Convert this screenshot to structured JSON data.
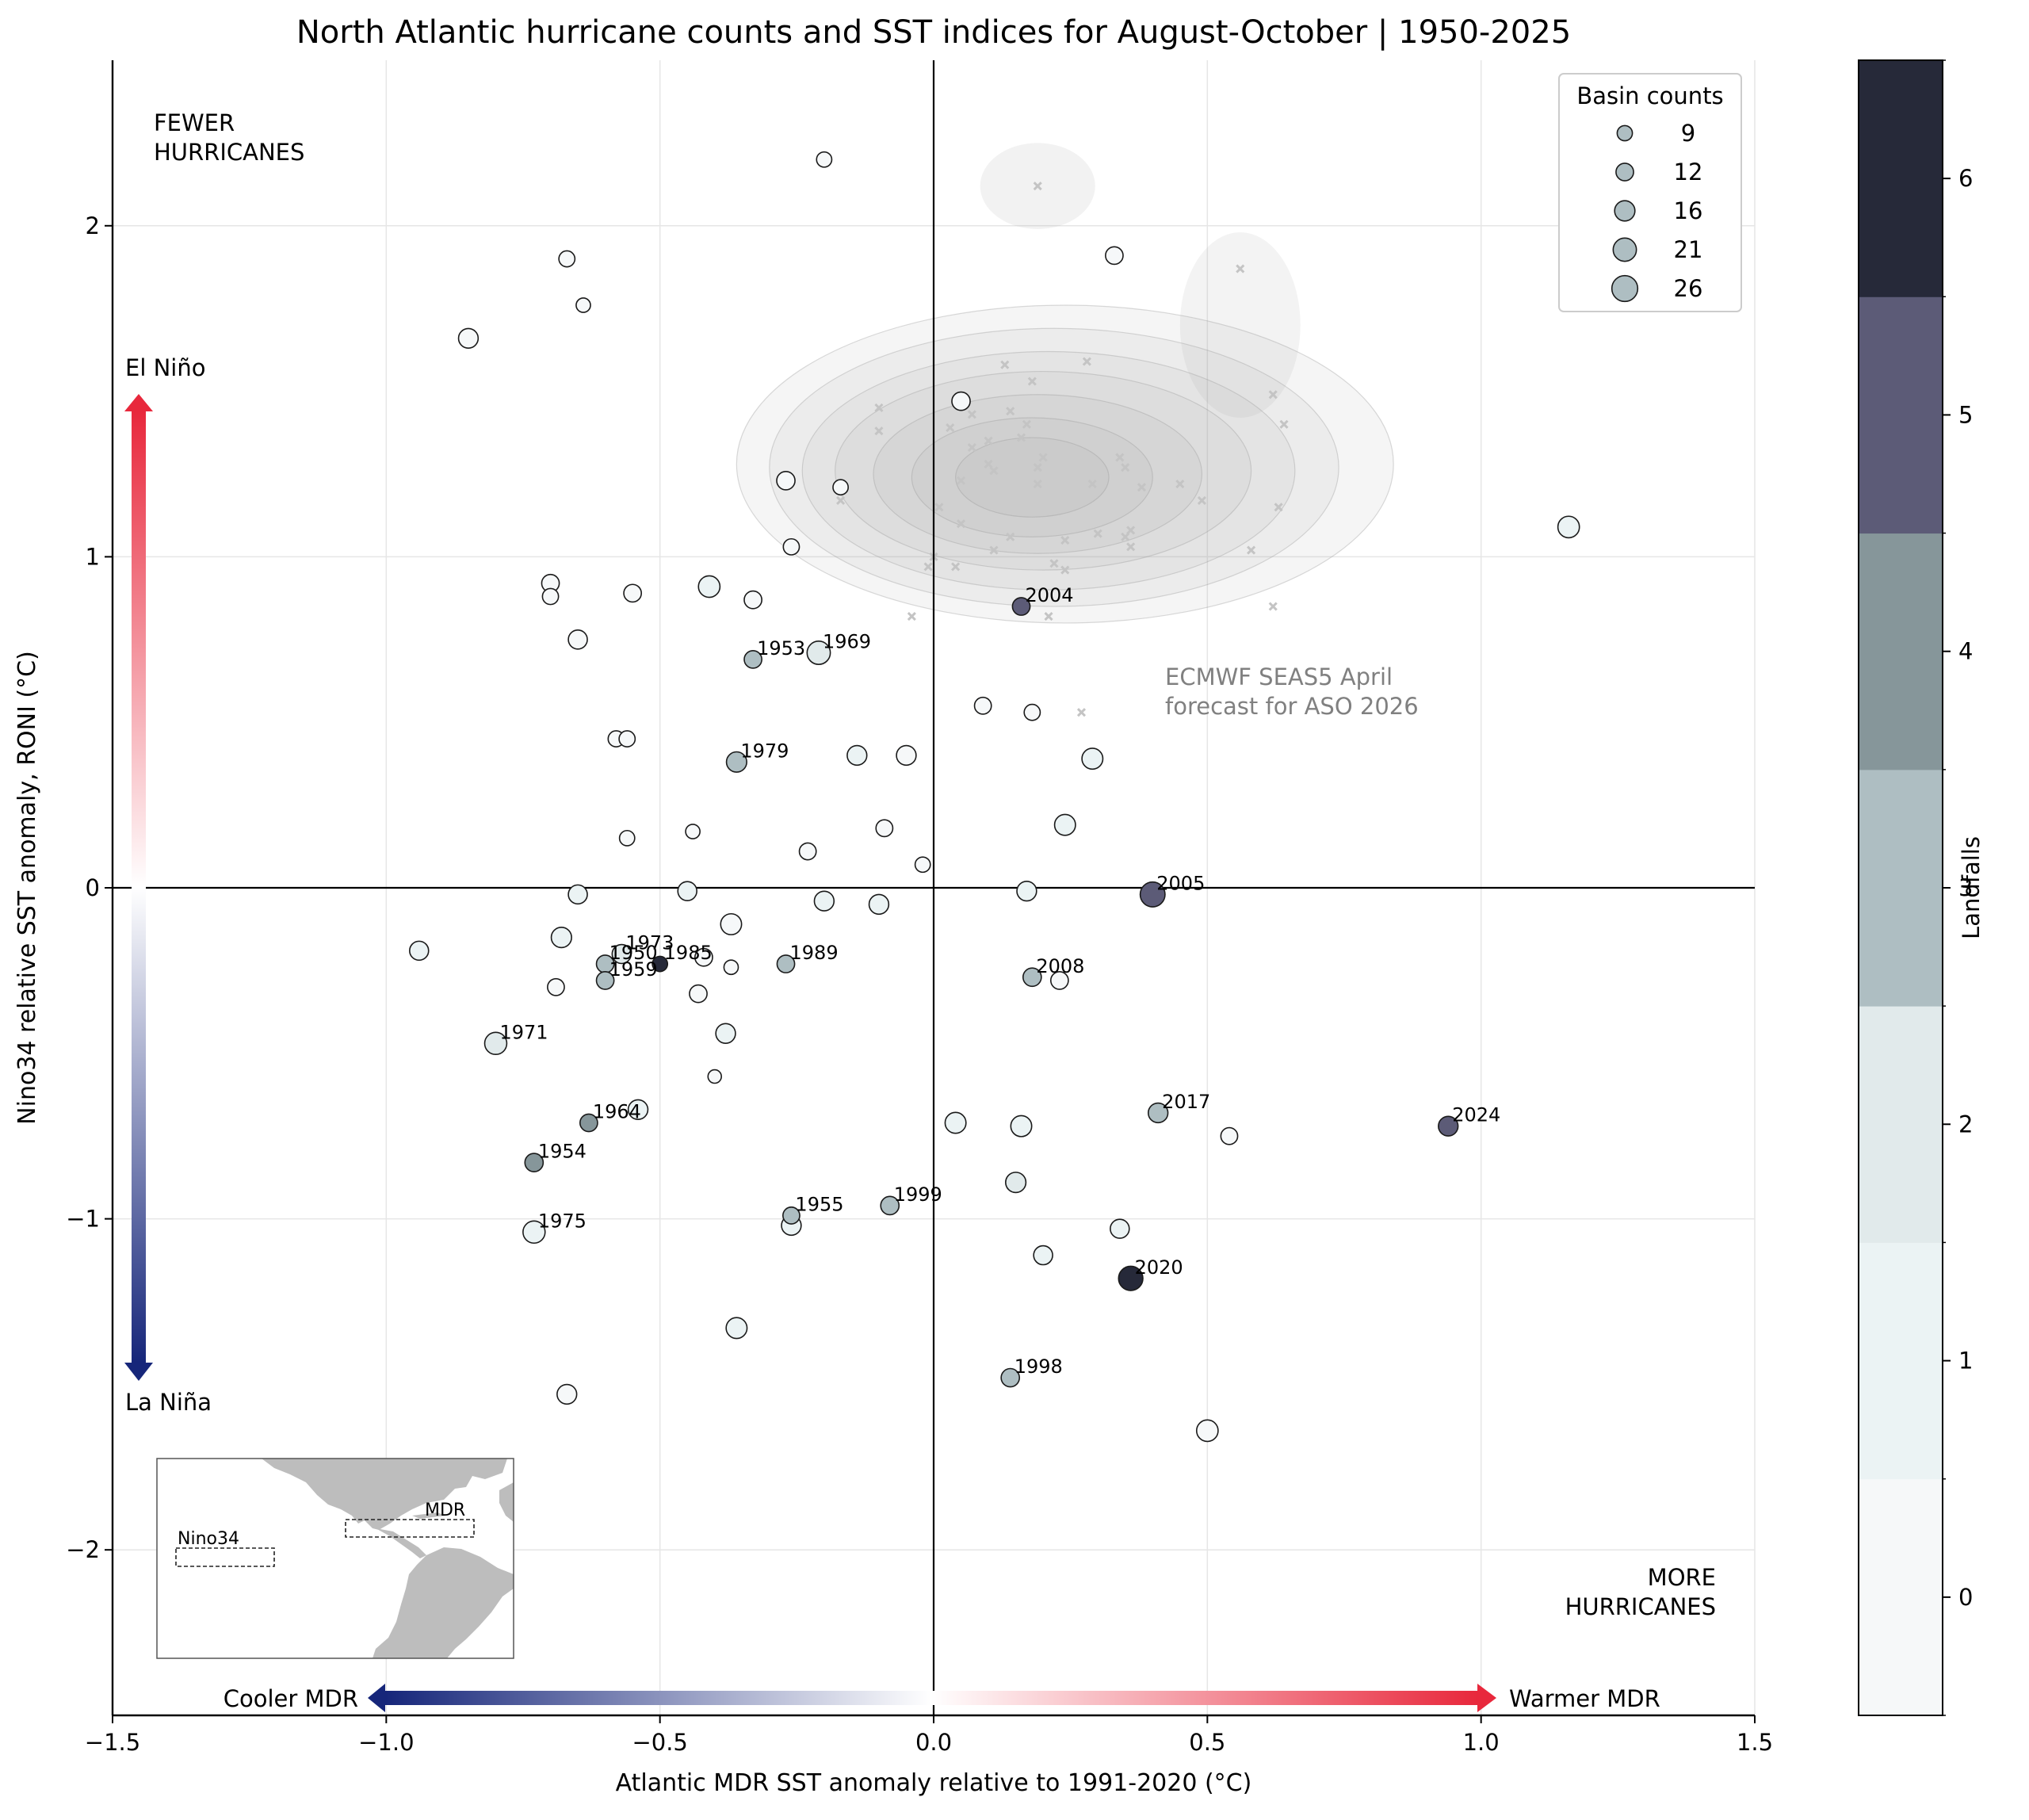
{
  "chart_data": {
    "type": "scatter",
    "title": "North Atlantic hurricane counts and SST indices for August-October | 1950-2025",
    "xlabel": "Atlantic MDR SST anomaly relative to 1991-2020 (°C)",
    "ylabel": "Nino34 relative SST anomaly, RONI  (°C)",
    "xlim": [
      -1.5,
      1.5
    ],
    "ylim": [
      -2.5,
      2.5
    ],
    "xticks": [
      -1.5,
      -1.0,
      -0.5,
      0.0,
      0.5,
      1.0,
      1.5
    ],
    "xtick_labels": [
      "−1.5",
      "−1.0",
      "−0.5",
      "0.0",
      "0.5",
      "1.0",
      "1.5"
    ],
    "yticks": [
      -2,
      -1,
      0,
      1,
      2
    ],
    "ytick_labels": [
      "−2",
      "−1",
      "0",
      "1",
      "2"
    ],
    "grid": true,
    "quadrant_labels": {
      "top_left": [
        "FEWER",
        "HURRICANES"
      ],
      "bottom_right": [
        "MORE",
        "HURRICANES"
      ]
    },
    "y_arrow": {
      "top": "El Niño",
      "bottom": "La Niña",
      "top_color": "#e8283c",
      "bottom_color": "#16267a"
    },
    "x_arrow": {
      "left": "Cooler MDR",
      "right": "Warmer MDR",
      "left_color": "#16267a",
      "right_color": "#e8283c"
    },
    "forecast_label": [
      "ECMWF SEAS5 April",
      "forecast for ASO 2026"
    ],
    "legend": {
      "title": "Basin counts",
      "placement": "top-right",
      "entries": [
        {
          "label": "9",
          "count": 9
        },
        {
          "label": "12",
          "count": 12
        },
        {
          "label": "16",
          "count": 16
        },
        {
          "label": "21",
          "count": 21
        },
        {
          "label": "26",
          "count": 26
        }
      ]
    },
    "colorbar": {
      "label": "Landfalls",
      "levels": [
        0,
        1,
        2,
        3,
        4,
        5,
        6
      ],
      "tick_labels": [
        "0",
        "1",
        "2",
        "3",
        "4",
        "5",
        "6"
      ],
      "colors": [
        "#f6f8f9",
        "#ebf3f4",
        "#e1eaeb",
        "#aebec2",
        "#86969a",
        "#5c5b77",
        "#262939"
      ]
    },
    "inset_map": {
      "labels": [
        "MDR",
        "Nino34"
      ],
      "land_color": "#bdbdbd"
    },
    "points": [
      {
        "x": -0.2,
        "y": 2.2,
        "count": 9,
        "landfalls": 0
      },
      {
        "x": -0.67,
        "y": 1.9,
        "count": 10,
        "landfalls": 0
      },
      {
        "x": 0.33,
        "y": 1.91,
        "count": 12,
        "landfalls": 0
      },
      {
        "x": -0.64,
        "y": 1.76,
        "count": 8,
        "landfalls": 0
      },
      {
        "x": -0.85,
        "y": 1.66,
        "count": 15,
        "landfalls": 0
      },
      {
        "x": 0.05,
        "y": 1.47,
        "count": 13,
        "landfalls": 0
      },
      {
        "x": -0.27,
        "y": 1.23,
        "count": 13,
        "landfalls": 0
      },
      {
        "x": -0.17,
        "y": 1.21,
        "count": 9,
        "landfalls": 0
      },
      {
        "x": 1.16,
        "y": 1.09,
        "count": 18,
        "landfalls": 1
      },
      {
        "x": -0.26,
        "y": 1.03,
        "count": 10,
        "landfalls": 0
      },
      {
        "x": -0.7,
        "y": 0.92,
        "count": 12,
        "landfalls": 0
      },
      {
        "x": -0.7,
        "y": 0.88,
        "count": 10,
        "landfalls": 0
      },
      {
        "x": -0.55,
        "y": 0.89,
        "count": 12,
        "landfalls": 0
      },
      {
        "x": -0.41,
        "y": 0.91,
        "count": 18,
        "landfalls": 1
      },
      {
        "x": -0.33,
        "y": 0.87,
        "count": 12,
        "landfalls": 0
      },
      {
        "x": 0.16,
        "y": 0.85,
        "count": 12,
        "landfalls": 5,
        "label": "2004"
      },
      {
        "x": -0.65,
        "y": 0.75,
        "count": 14,
        "landfalls": 0
      },
      {
        "x": -0.33,
        "y": 0.69,
        "count": 12,
        "landfalls": 3,
        "label": "1953"
      },
      {
        "x": -0.21,
        "y": 0.71,
        "count": 21,
        "landfalls": 2,
        "label": "1969"
      },
      {
        "x": 0.09,
        "y": 0.55,
        "count": 11,
        "landfalls": 0
      },
      {
        "x": 0.18,
        "y": 0.53,
        "count": 10,
        "landfalls": 0
      },
      {
        "x": -0.58,
        "y": 0.45,
        "count": 10,
        "landfalls": 0
      },
      {
        "x": -0.56,
        "y": 0.45,
        "count": 10,
        "landfalls": 0
      },
      {
        "x": -0.36,
        "y": 0.38,
        "count": 16,
        "landfalls": 3,
        "label": "1979"
      },
      {
        "x": -0.14,
        "y": 0.4,
        "count": 15,
        "landfalls": 1
      },
      {
        "x": -0.05,
        "y": 0.4,
        "count": 15,
        "landfalls": 0
      },
      {
        "x": 0.29,
        "y": 0.39,
        "count": 17,
        "landfalls": 1
      },
      {
        "x": 0.24,
        "y": 0.19,
        "count": 17,
        "landfalls": 1
      },
      {
        "x": -0.44,
        "y": 0.17,
        "count": 8,
        "landfalls": 0
      },
      {
        "x": -0.09,
        "y": 0.18,
        "count": 11,
        "landfalls": 0
      },
      {
        "x": -0.56,
        "y": 0.15,
        "count": 9,
        "landfalls": 0
      },
      {
        "x": -0.23,
        "y": 0.11,
        "count": 11,
        "landfalls": 0
      },
      {
        "x": -0.02,
        "y": 0.07,
        "count": 9,
        "landfalls": 0
      },
      {
        "x": -0.65,
        "y": -0.02,
        "count": 14,
        "landfalls": 1
      },
      {
        "x": -0.45,
        "y": -0.01,
        "count": 14,
        "landfalls": 1
      },
      {
        "x": -0.2,
        "y": -0.04,
        "count": 15,
        "landfalls": 1
      },
      {
        "x": -0.1,
        "y": -0.05,
        "count": 15,
        "landfalls": 1
      },
      {
        "x": 0.17,
        "y": -0.01,
        "count": 15,
        "landfalls": 1
      },
      {
        "x": 0.4,
        "y": -0.02,
        "count": 24,
        "landfalls": 5,
        "label": "2005"
      },
      {
        "x": -0.37,
        "y": -0.11,
        "count": 17,
        "landfalls": 0
      },
      {
        "x": -0.68,
        "y": -0.15,
        "count": 16,
        "landfalls": 1
      },
      {
        "x": -0.94,
        "y": -0.19,
        "count": 14,
        "landfalls": 1
      },
      {
        "x": -0.57,
        "y": -0.2,
        "count": 14,
        "landfalls": 2,
        "label": "1973"
      },
      {
        "x": -0.5,
        "y": -0.23,
        "count": 9,
        "landfalls": 6,
        "label": "1985"
      },
      {
        "x": -0.6,
        "y": -0.23,
        "count": 12,
        "landfalls": 3,
        "label": "1950"
      },
      {
        "x": -0.42,
        "y": -0.21,
        "count": 12,
        "landfalls": 0
      },
      {
        "x": -0.37,
        "y": -0.24,
        "count": 8,
        "landfalls": 0
      },
      {
        "x": -0.27,
        "y": -0.23,
        "count": 12,
        "landfalls": 3,
        "label": "1989"
      },
      {
        "x": -0.6,
        "y": -0.28,
        "count": 12,
        "landfalls": 3,
        "label": "1959"
      },
      {
        "x": 0.18,
        "y": -0.27,
        "count": 13,
        "landfalls": 3,
        "label": "2008"
      },
      {
        "x": 0.23,
        "y": -0.28,
        "count": 12,
        "landfalls": 0
      },
      {
        "x": -0.69,
        "y": -0.3,
        "count": 11,
        "landfalls": 0
      },
      {
        "x": -0.43,
        "y": -0.32,
        "count": 12,
        "landfalls": 0
      },
      {
        "x": -0.38,
        "y": -0.44,
        "count": 15,
        "landfalls": 1
      },
      {
        "x": -0.8,
        "y": -0.47,
        "count": 19,
        "landfalls": 2,
        "label": "1971"
      },
      {
        "x": -0.4,
        "y": -0.57,
        "count": 7,
        "landfalls": 0
      },
      {
        "x": -0.54,
        "y": -0.67,
        "count": 15,
        "landfalls": 1
      },
      {
        "x": 0.04,
        "y": -0.71,
        "count": 17,
        "landfalls": 1
      },
      {
        "x": 0.16,
        "y": -0.72,
        "count": 17,
        "landfalls": 1
      },
      {
        "x": -0.63,
        "y": -0.71,
        "count": 12,
        "landfalls": 4,
        "label": "1964"
      },
      {
        "x": 0.41,
        "y": -0.68,
        "count": 15,
        "landfalls": 3,
        "label": "2017"
      },
      {
        "x": 0.54,
        "y": -0.75,
        "count": 11,
        "landfalls": 0
      },
      {
        "x": 0.94,
        "y": -0.72,
        "count": 15,
        "landfalls": 5,
        "label": "2024"
      },
      {
        "x": -0.73,
        "y": -0.83,
        "count": 13,
        "landfalls": 4,
        "label": "1954"
      },
      {
        "x": 0.15,
        "y": -0.89,
        "count": 16,
        "landfalls": 2
      },
      {
        "x": -0.26,
        "y": -0.99,
        "count": 11,
        "landfalls": 3,
        "label": "1955"
      },
      {
        "x": -0.08,
        "y": -0.96,
        "count": 13,
        "landfalls": 3,
        "label": "1999"
      },
      {
        "x": -0.73,
        "y": -1.04,
        "count": 19,
        "landfalls": 1,
        "label": "1975"
      },
      {
        "x": -0.26,
        "y": -1.02,
        "count": 15,
        "landfalls": 1
      },
      {
        "x": 0.34,
        "y": -1.03,
        "count": 14,
        "landfalls": 1
      },
      {
        "x": 0.2,
        "y": -1.11,
        "count": 14,
        "landfalls": 1
      },
      {
        "x": 0.36,
        "y": -1.18,
        "count": 23,
        "landfalls": 6,
        "label": "2020"
      },
      {
        "x": -0.36,
        "y": -1.33,
        "count": 17,
        "landfalls": 1
      },
      {
        "x": 0.14,
        "y": -1.48,
        "count": 13,
        "landfalls": 3,
        "label": "1998"
      },
      {
        "x": -0.67,
        "y": -1.53,
        "count": 15,
        "landfalls": 0
      },
      {
        "x": 0.5,
        "y": -1.64,
        "count": 18,
        "landfalls": 0
      }
    ],
    "forecast_members": [
      [
        0.19,
        2.12
      ],
      [
        0.56,
        1.87
      ],
      [
        0.62,
        1.49
      ],
      [
        0.64,
        1.4
      ],
      [
        0.18,
        1.53
      ],
      [
        0.13,
        1.58
      ],
      [
        0.28,
        1.59
      ],
      [
        -0.1,
        1.45
      ],
      [
        -0.1,
        1.38
      ],
      [
        0.03,
        1.39
      ],
      [
        0.07,
        1.43
      ],
      [
        0.14,
        1.44
      ],
      [
        0.17,
        1.4
      ],
      [
        0.16,
        1.36
      ],
      [
        0.1,
        1.35
      ],
      [
        0.07,
        1.33
      ],
      [
        0.2,
        1.3
      ],
      [
        0.34,
        1.3
      ],
      [
        0.35,
        1.27
      ],
      [
        0.19,
        1.27
      ],
      [
        0.1,
        1.28
      ],
      [
        0.05,
        1.23
      ],
      [
        0.11,
        1.26
      ],
      [
        0.19,
        1.22
      ],
      [
        0.29,
        1.22
      ],
      [
        0.38,
        1.21
      ],
      [
        0.45,
        1.22
      ],
      [
        0.49,
        1.17
      ],
      [
        0.63,
        1.15
      ],
      [
        0.01,
        1.15
      ],
      [
        -0.17,
        1.17
      ],
      [
        0.05,
        1.1
      ],
      [
        0.14,
        1.06
      ],
      [
        0.24,
        1.05
      ],
      [
        0.3,
        1.07
      ],
      [
        0.35,
        1.06
      ],
      [
        0.36,
        1.08
      ],
      [
        0.11,
        1.02
      ],
      [
        0.36,
        1.03
      ],
      [
        0.0,
        1.0
      ],
      [
        0.04,
        0.97
      ],
      [
        -0.01,
        0.97
      ],
      [
        0.22,
        0.98
      ],
      [
        0.24,
        0.96
      ],
      [
        0.58,
        1.02
      ],
      [
        -0.04,
        0.82
      ],
      [
        0.21,
        0.82
      ],
      [
        0.62,
        0.85
      ],
      [
        0.27,
        0.53
      ]
    ],
    "forecast_density": [
      {
        "level": 1,
        "cx": 0.24,
        "cy": 1.28,
        "rx": 0.6,
        "ry": 0.48
      },
      {
        "level": 2,
        "cx": 0.22,
        "cy": 1.27,
        "rx": 0.52,
        "ry": 0.42
      },
      {
        "level": 3,
        "cx": 0.21,
        "cy": 1.26,
        "rx": 0.45,
        "ry": 0.36
      },
      {
        "level": 4,
        "cx": 0.2,
        "cy": 1.26,
        "rx": 0.38,
        "ry": 0.3
      },
      {
        "level": 5,
        "cx": 0.19,
        "cy": 1.25,
        "rx": 0.3,
        "ry": 0.24
      },
      {
        "level": 6,
        "cx": 0.18,
        "cy": 1.24,
        "rx": 0.22,
        "ry": 0.18
      },
      {
        "level": 7,
        "cx": 0.18,
        "cy": 1.24,
        "rx": 0.14,
        "ry": 0.12
      }
    ]
  }
}
